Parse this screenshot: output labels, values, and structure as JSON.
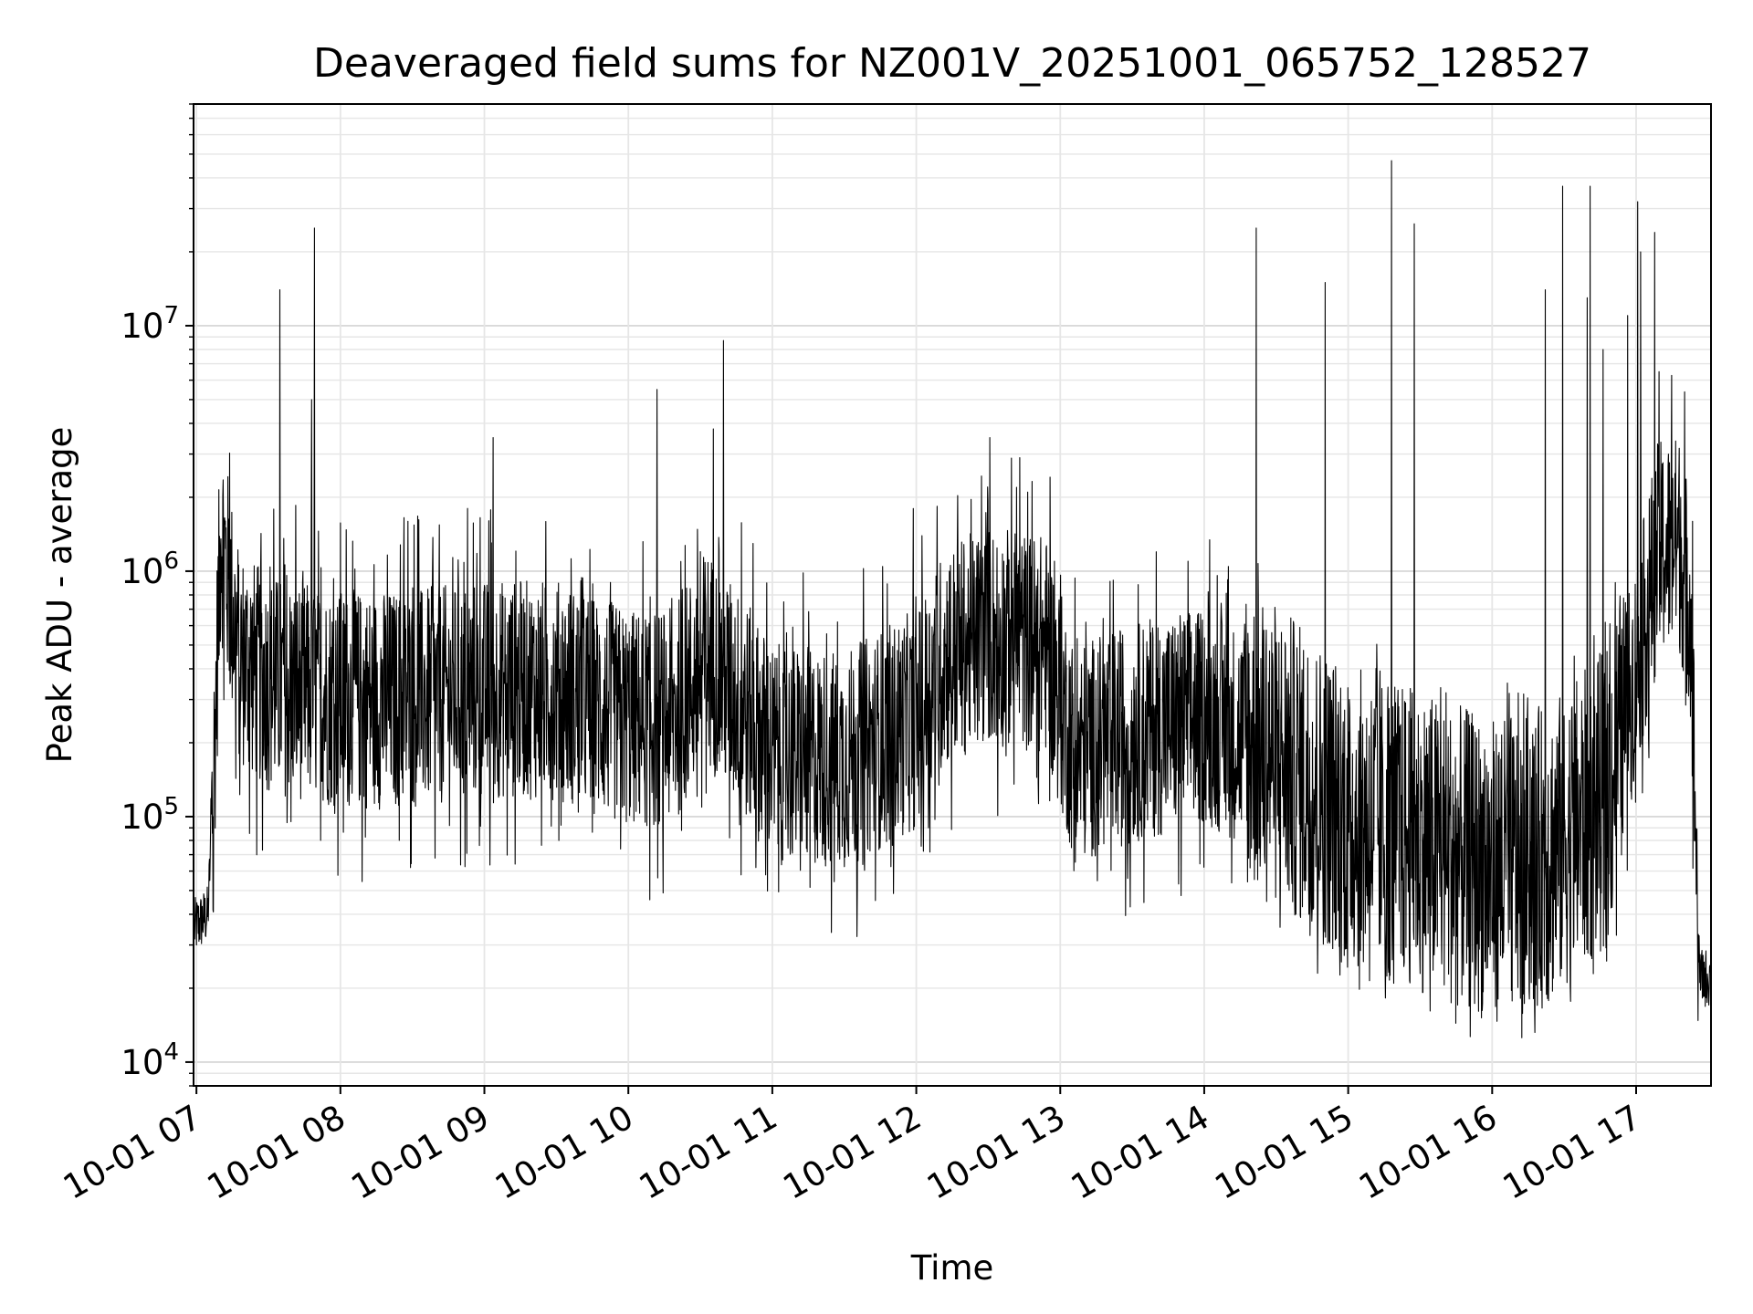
{
  "chart_data": {
    "type": "line",
    "title": "Deaveraged field sums for NZ001V_20251001_065752_128527",
    "xlabel": "Time",
    "ylabel": "Peak ADU - average",
    "yscale": "log",
    "ylim": [
      8000,
      80000000
    ],
    "xlim": [
      6.98,
      17.52
    ],
    "grid": true,
    "x_ticks": [
      {
        "value": 7,
        "label": "10-01 07"
      },
      {
        "value": 8,
        "label": "10-01 08"
      },
      {
        "value": 9,
        "label": "10-01 09"
      },
      {
        "value": 10,
        "label": "10-01 10"
      },
      {
        "value": 11,
        "label": "10-01 11"
      },
      {
        "value": 12,
        "label": "10-01 12"
      },
      {
        "value": 13,
        "label": "10-01 13"
      },
      {
        "value": 14,
        "label": "10-01 14"
      },
      {
        "value": 15,
        "label": "10-01 15"
      },
      {
        "value": 16,
        "label": "10-01 16"
      },
      {
        "value": 17,
        "label": "10-01 17"
      }
    ],
    "y_ticks": [
      {
        "value": 10000,
        "base": "10",
        "exp": "4"
      },
      {
        "value": 100000,
        "base": "10",
        "exp": "5"
      },
      {
        "value": 1000000,
        "base": "10",
        "exp": "6"
      },
      {
        "value": 10000000,
        "base": "10",
        "exp": "7"
      }
    ],
    "series": [
      {
        "name": "Peak ADU - average",
        "color": "#000000",
        "envelope_hours": [
          6.98,
          7.08,
          7.12,
          7.17,
          7.22,
          7.3,
          7.5,
          8.0,
          8.5,
          9.0,
          9.5,
          10.0,
          10.3,
          10.55,
          10.8,
          11.0,
          11.5,
          12.0,
          12.2,
          12.5,
          12.9,
          13.1,
          13.5,
          14.0,
          14.5,
          15.0,
          15.5,
          16.0,
          16.4,
          16.8,
          17.0,
          17.15,
          17.3,
          17.38,
          17.42,
          17.44,
          17.52
        ],
        "envelope_median": [
          35000,
          40000,
          150000,
          1500000,
          900000,
          450000,
          350000,
          300000,
          300000,
          330000,
          330000,
          250000,
          250000,
          450000,
          280000,
          180000,
          170000,
          250000,
          450000,
          550000,
          500000,
          180000,
          220000,
          260000,
          180000,
          100000,
          80000,
          60000,
          70000,
          120000,
          400000,
          1200000,
          1300000,
          700000,
          60000,
          22000,
          22000
        ],
        "spikes": [
          {
            "t": 7.58,
            "v": 14000000
          },
          {
            "t": 7.8,
            "v": 5000000
          },
          {
            "t": 7.82,
            "v": 25000000
          },
          {
            "t": 9.06,
            "v": 3500000
          },
          {
            "t": 10.2,
            "v": 5500000
          },
          {
            "t": 10.59,
            "v": 3800000
          },
          {
            "t": 10.66,
            "v": 8700000
          },
          {
            "t": 11.98,
            "v": 1800000
          },
          {
            "t": 12.51,
            "v": 3500000
          },
          {
            "t": 12.72,
            "v": 2900000
          },
          {
            "t": 14.36,
            "v": 25000000
          },
          {
            "t": 14.84,
            "v": 15000000
          },
          {
            "t": 15.3,
            "v": 47000000
          },
          {
            "t": 15.46,
            "v": 26000000
          },
          {
            "t": 16.37,
            "v": 14000000
          },
          {
            "t": 16.49,
            "v": 37000000
          },
          {
            "t": 16.66,
            "v": 13000000
          },
          {
            "t": 16.68,
            "v": 37000000
          },
          {
            "t": 16.77,
            "v": 8000000
          },
          {
            "t": 16.94,
            "v": 11000000
          },
          {
            "t": 17.01,
            "v": 32000000
          },
          {
            "t": 17.03,
            "v": 20000000
          },
          {
            "t": 17.13,
            "v": 24000000
          },
          {
            "t": 17.16,
            "v": 6500000
          },
          {
            "t": 17.27,
            "v": 2500000
          }
        ]
      }
    ]
  }
}
